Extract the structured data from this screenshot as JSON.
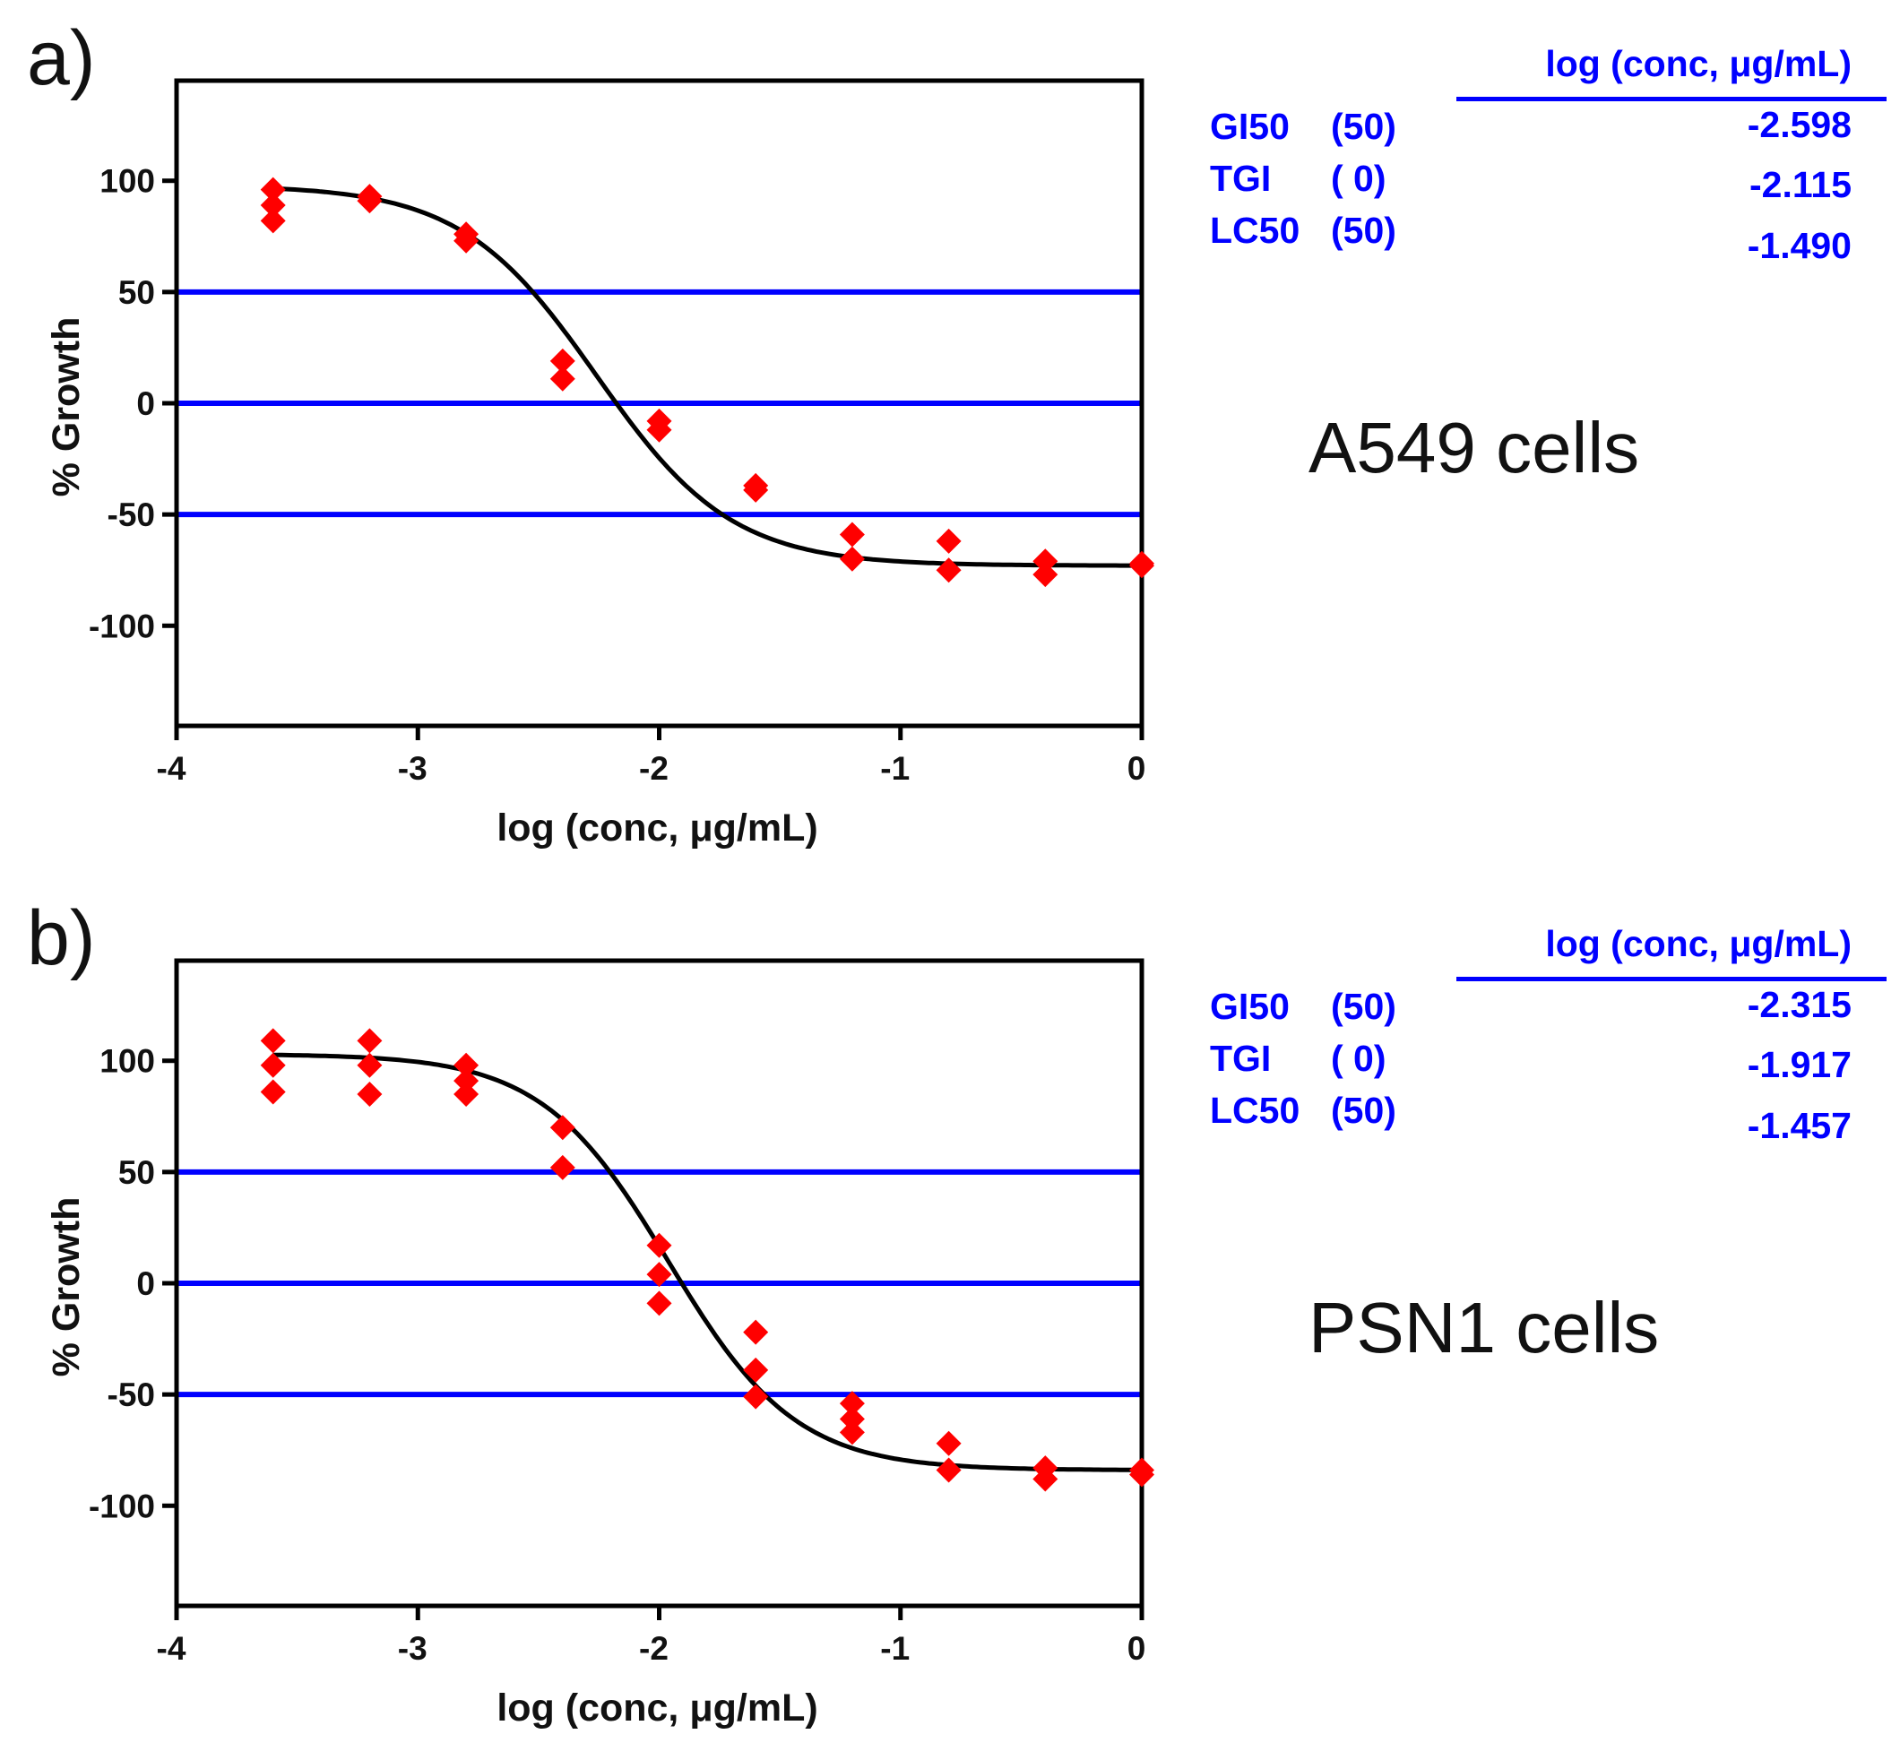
{
  "chart_data": [
    {
      "type": "scatter",
      "panel_label": "a)",
      "cell_line": "A549 cells",
      "xlabel": "log (conc, μg/mL)",
      "ylabel": "% Growth",
      "xlim": [
        -4,
        0
      ],
      "ylim": [
        -145,
        145
      ],
      "xticks": [
        -4,
        -3,
        -2,
        -1,
        0
      ],
      "yticks": [
        100,
        50,
        0,
        -50,
        -100
      ],
      "reference_lines": [
        50,
        0,
        -50
      ],
      "points": [
        {
          "x": -3.6,
          "y": 96
        },
        {
          "x": -3.6,
          "y": 89
        },
        {
          "x": -3.6,
          "y": 82
        },
        {
          "x": -3.2,
          "y": 93
        },
        {
          "x": -3.2,
          "y": 91
        },
        {
          "x": -2.8,
          "y": 76
        },
        {
          "x": -2.8,
          "y": 73
        },
        {
          "x": -2.4,
          "y": 19
        },
        {
          "x": -2.4,
          "y": 11
        },
        {
          "x": -2.0,
          "y": -8
        },
        {
          "x": -2.0,
          "y": -12
        },
        {
          "x": -1.6,
          "y": -37
        },
        {
          "x": -1.6,
          "y": -39
        },
        {
          "x": -1.2,
          "y": -59
        },
        {
          "x": -1.2,
          "y": -70
        },
        {
          "x": -0.8,
          "y": -62
        },
        {
          "x": -0.8,
          "y": -75
        },
        {
          "x": -0.4,
          "y": -71
        },
        {
          "x": -0.4,
          "y": -77
        },
        {
          "x": 0.0,
          "y": -72
        },
        {
          "x": 0.0,
          "y": -73
        }
      ],
      "fit": {
        "top": 98,
        "bottom": -73,
        "log_ic50": -2.26,
        "hill": 1.55
      },
      "results": {
        "header": "log (conc, μg/mL)",
        "rows": [
          {
            "name": "GI50",
            "pct": "(50)",
            "value": "-2.598"
          },
          {
            "name": "TGI",
            "pct": "( 0)",
            "value": "-2.115"
          },
          {
            "name": "LC50",
            "pct": "(50)",
            "value": "-1.490"
          }
        ]
      },
      "colors": {
        "points": "#ff0000",
        "fit": "#000000",
        "reference": "#0000ff",
        "text": "#0000ff"
      }
    },
    {
      "type": "scatter",
      "panel_label": "b)",
      "cell_line": "PSN1 cells",
      "xlabel": "log (conc, μg/mL)",
      "ylabel": "% Growth",
      "xlim": [
        -4,
        0
      ],
      "ylim": [
        -145,
        145
      ],
      "xticks": [
        -4,
        -3,
        -2,
        -1,
        0
      ],
      "yticks": [
        100,
        50,
        0,
        -50,
        -100
      ],
      "reference_lines": [
        50,
        0,
        -50
      ],
      "points": [
        {
          "x": -3.6,
          "y": 109
        },
        {
          "x": -3.6,
          "y": 98
        },
        {
          "x": -3.6,
          "y": 86
        },
        {
          "x": -3.2,
          "y": 109
        },
        {
          "x": -3.2,
          "y": 98
        },
        {
          "x": -3.2,
          "y": 85
        },
        {
          "x": -2.8,
          "y": 98
        },
        {
          "x": -2.8,
          "y": 91
        },
        {
          "x": -2.8,
          "y": 85
        },
        {
          "x": -2.4,
          "y": 70
        },
        {
          "x": -2.4,
          "y": 52
        },
        {
          "x": -2.0,
          "y": 17
        },
        {
          "x": -2.0,
          "y": 4
        },
        {
          "x": -2.0,
          "y": -9
        },
        {
          "x": -1.6,
          "y": -22
        },
        {
          "x": -1.6,
          "y": -39
        },
        {
          "x": -1.6,
          "y": -51
        },
        {
          "x": -1.2,
          "y": -54
        },
        {
          "x": -1.2,
          "y": -61
        },
        {
          "x": -1.2,
          "y": -67
        },
        {
          "x": -0.8,
          "y": -72
        },
        {
          "x": -0.8,
          "y": -84
        },
        {
          "x": -0.4,
          "y": -83
        },
        {
          "x": -0.4,
          "y": -88
        },
        {
          "x": 0.0,
          "y": -84
        },
        {
          "x": 0.0,
          "y": -86
        }
      ],
      "fit": {
        "top": 103,
        "bottom": -84,
        "log_ic50": -1.96,
        "hill": 1.65
      },
      "results": {
        "header": "log (conc, μg/mL)",
        "rows": [
          {
            "name": "GI50",
            "pct": "(50)",
            "value": "-2.315"
          },
          {
            "name": "TGI",
            "pct": "( 0)",
            "value": "-1.917"
          },
          {
            "name": "LC50",
            "pct": "(50)",
            "value": "-1.457"
          }
        ]
      },
      "colors": {
        "points": "#ff0000",
        "fit": "#000000",
        "reference": "#0000ff",
        "text": "#0000ff"
      }
    }
  ]
}
